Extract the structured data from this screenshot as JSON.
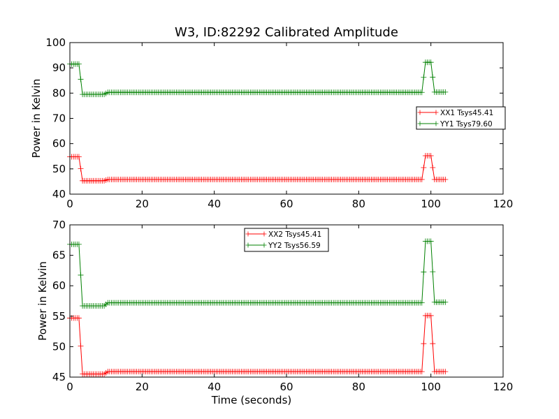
{
  "title": "W3, ID:82292 Calibrated Amplitude",
  "chart_data": [
    {
      "type": "line",
      "ylabel": "Power in Kelvin",
      "xlabel": "",
      "xlim": [
        0,
        120
      ],
      "ylim": [
        40,
        100
      ],
      "xticks": [
        0,
        20,
        40,
        60,
        80,
        100,
        120
      ],
      "yticks": [
        40,
        50,
        60,
        70,
        80,
        90,
        100
      ],
      "legend_position": "center-right",
      "series": [
        {
          "name": "XX1 Tsys45.41",
          "color": "#ff0000",
          "segments": [
            {
              "x_start": 0.0,
              "x_end": 2.5,
              "value": 54.8
            },
            {
              "x_start": 3.5,
              "x_end": 9.5,
              "value": 45.3
            },
            {
              "x_start": 10.5,
              "x_end": 97.5,
              "value": 45.8
            },
            {
              "x_start": 98.5,
              "x_end": 100.0,
              "value": 55.2
            },
            {
              "x_start": 101.0,
              "x_end": 104.0,
              "value": 45.8
            }
          ]
        },
        {
          "name": "YY1 Tsys79.60",
          "color": "#008000",
          "segments": [
            {
              "x_start": 0.0,
              "x_end": 2.5,
              "value": 91.5
            },
            {
              "x_start": 3.5,
              "x_end": 9.5,
              "value": 79.5
            },
            {
              "x_start": 10.5,
              "x_end": 97.5,
              "value": 80.3
            },
            {
              "x_start": 98.5,
              "x_end": 100.0,
              "value": 92.2
            },
            {
              "x_start": 101.0,
              "x_end": 104.0,
              "value": 80.4
            }
          ]
        }
      ]
    },
    {
      "type": "line",
      "ylabel": "Power in Kelvin",
      "xlabel": "Time (seconds)",
      "xlim": [
        0,
        120
      ],
      "ylim": [
        45,
        70
      ],
      "xticks": [
        0,
        20,
        40,
        60,
        80,
        100,
        120
      ],
      "yticks": [
        45,
        50,
        55,
        60,
        65,
        70
      ],
      "legend_position": "upper-center",
      "series": [
        {
          "name": "XX2 Tsys45.41",
          "color": "#ff0000",
          "segments": [
            {
              "x_start": 0.0,
              "x_end": 2.5,
              "value": 54.7
            },
            {
              "x_start": 3.5,
              "x_end": 9.5,
              "value": 45.5
            },
            {
              "x_start": 10.5,
              "x_end": 97.5,
              "value": 45.9
            },
            {
              "x_start": 98.5,
              "x_end": 100.0,
              "value": 55.1
            },
            {
              "x_start": 101.0,
              "x_end": 104.0,
              "value": 45.9
            }
          ]
        },
        {
          "name": "YY2 Tsys56.59",
          "color": "#008000",
          "segments": [
            {
              "x_start": 0.0,
              "x_end": 2.5,
              "value": 66.8
            },
            {
              "x_start": 3.5,
              "x_end": 9.5,
              "value": 56.7
            },
            {
              "x_start": 10.5,
              "x_end": 97.5,
              "value": 57.2
            },
            {
              "x_start": 98.5,
              "x_end": 100.0,
              "value": 67.3
            },
            {
              "x_start": 101.0,
              "x_end": 104.0,
              "value": 57.3
            }
          ]
        }
      ]
    }
  ]
}
